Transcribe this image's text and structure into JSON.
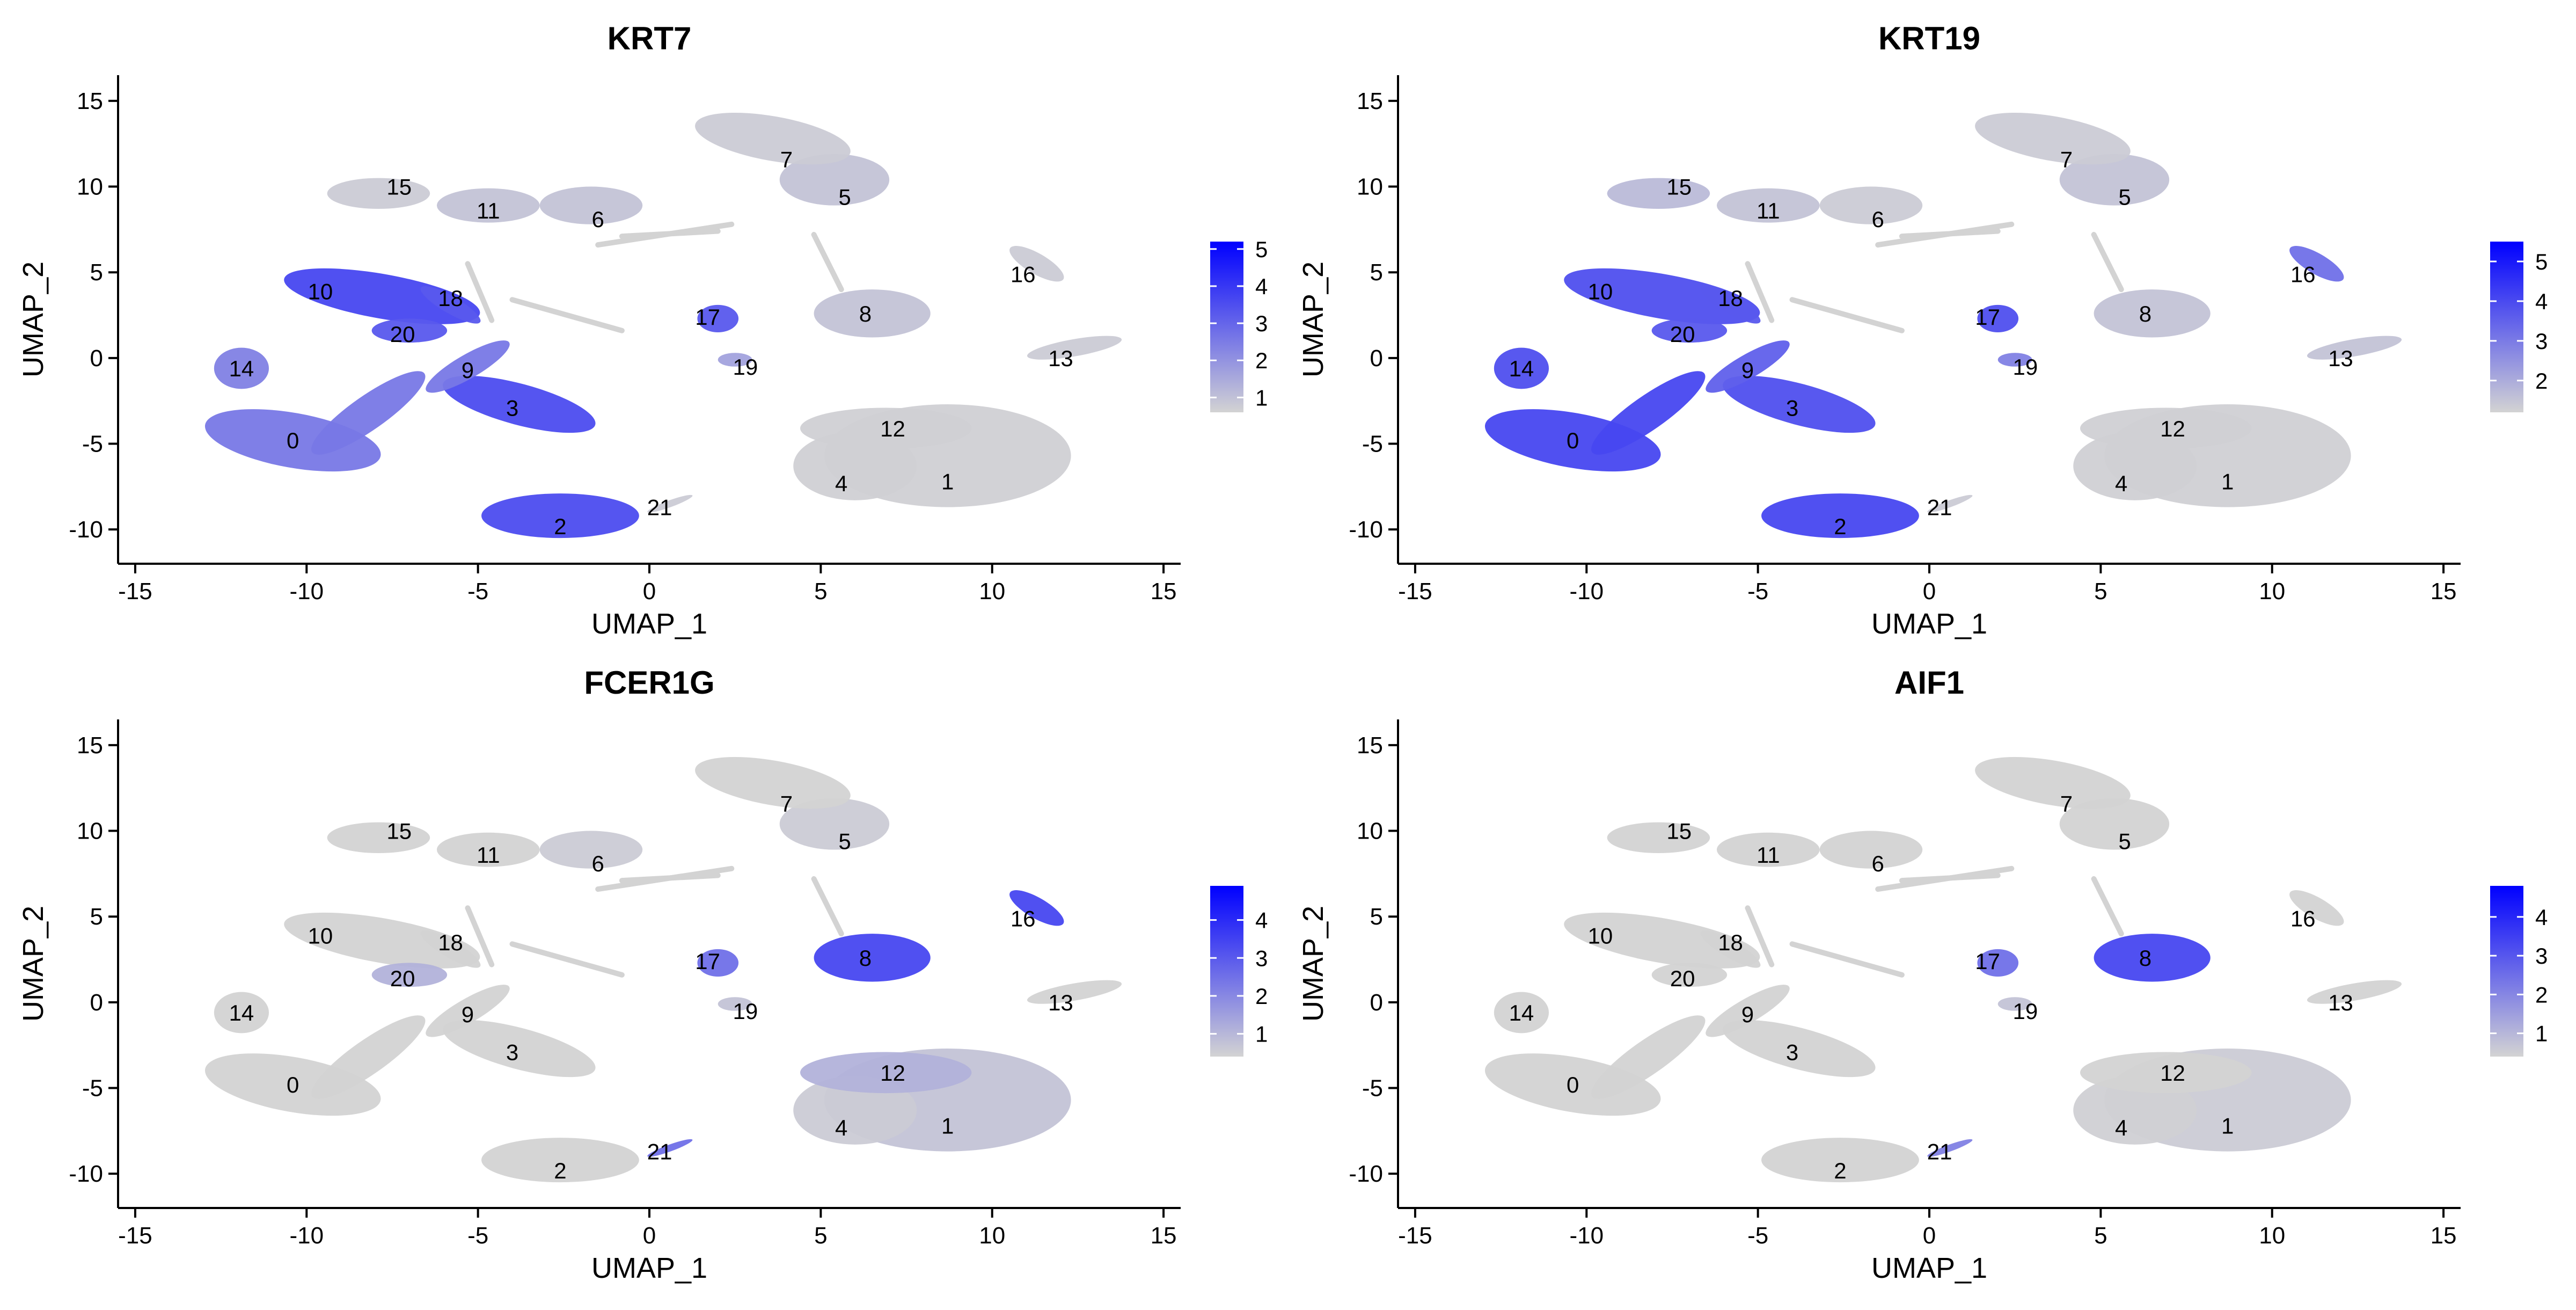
{
  "chart_data": [
    {
      "type": "scatter",
      "title": "KRT7",
      "xlabel": "UMAP_1",
      "ylabel": "UMAP_2",
      "xlim": [
        -15.5,
        15.5
      ],
      "ylim": [
        -12,
        16.5
      ],
      "xticks": [
        -15,
        -10,
        -5,
        0,
        5,
        10,
        15
      ],
      "yticks": [
        15,
        10,
        5,
        0,
        -5,
        -10
      ],
      "xtick_labels": [
        "-15",
        "-10",
        "-5",
        "0",
        "5",
        "10",
        "15"
      ],
      "ytick_labels": [
        "15",
        "10",
        "5",
        "0",
        "-5",
        "-10"
      ],
      "color_low": "#d3d3d3",
      "color_high": "#0000ff",
      "legend": {
        "position": "right",
        "min": 0.6,
        "max": 5.2,
        "ticks": [
          5,
          4,
          3,
          2,
          1
        ],
        "tick_labels": [
          "5",
          "4",
          "3",
          "2",
          "1"
        ]
      },
      "grid": false,
      "clusters": [
        {
          "label": "0",
          "x": -10.4,
          "y": -4.8,
          "level": 0.55
        },
        {
          "label": "1",
          "x": 8.7,
          "y": -7.2,
          "level": 0.02
        },
        {
          "label": "2",
          "x": -2.6,
          "y": -9.8,
          "level": 0.82
        },
        {
          "label": "3",
          "x": -4.0,
          "y": -2.9,
          "level": 0.82
        },
        {
          "label": "4",
          "x": 5.6,
          "y": -7.3,
          "level": 0.02
        },
        {
          "label": "5",
          "x": 5.7,
          "y": 9.4,
          "level": 0.1
        },
        {
          "label": "6",
          "x": -1.5,
          "y": 8.1,
          "level": 0.1
        },
        {
          "label": "7",
          "x": 4.0,
          "y": 11.6,
          "level": 0.05
        },
        {
          "label": "8",
          "x": 6.3,
          "y": 2.6,
          "level": 0.1
        },
        {
          "label": "9",
          "x": -5.3,
          "y": -0.7,
          "level": 0.55
        },
        {
          "label": "10",
          "x": -9.6,
          "y": 3.9,
          "level": 0.85
        },
        {
          "label": "11",
          "x": -4.7,
          "y": 8.6,
          "level": 0.1
        },
        {
          "label": "12",
          "x": 7.1,
          "y": -4.1,
          "level": 0.02
        },
        {
          "label": "13",
          "x": 12.0,
          "y": 0.0,
          "level": 0.05
        },
        {
          "label": "14",
          "x": -11.9,
          "y": -0.6,
          "level": 0.5
        },
        {
          "label": "15",
          "x": -7.3,
          "y": 10.0,
          "level": 0.05
        },
        {
          "label": "16",
          "x": 10.9,
          "y": 4.9,
          "level": 0.05
        },
        {
          "label": "17",
          "x": 1.7,
          "y": 2.4,
          "level": 0.75
        },
        {
          "label": "18",
          "x": -5.8,
          "y": 3.5,
          "level": 0.75
        },
        {
          "label": "19",
          "x": 2.8,
          "y": -0.5,
          "level": 0.3
        },
        {
          "label": "20",
          "x": -7.2,
          "y": 1.4,
          "level": 0.75
        },
        {
          "label": "21",
          "x": 0.3,
          "y": -8.7,
          "level": 0.05
        }
      ]
    },
    {
      "type": "scatter",
      "title": "KRT19",
      "xlabel": "UMAP_1",
      "ylabel": "UMAP_2",
      "xlim": [
        -15.5,
        15.5
      ],
      "ylim": [
        -12,
        16.5
      ],
      "xticks": [
        -15,
        -10,
        -5,
        0,
        5,
        10,
        15
      ],
      "yticks": [
        15,
        10,
        5,
        0,
        -5,
        -10
      ],
      "xtick_labels": [
        "-15",
        "-10",
        "-5",
        "0",
        "5",
        "10",
        "15"
      ],
      "ytick_labels": [
        "15",
        "10",
        "5",
        "0",
        "-5",
        "-10"
      ],
      "color_low": "#d3d3d3",
      "color_high": "#0000ff",
      "legend": {
        "position": "right",
        "min": 1.2,
        "max": 5.5,
        "ticks": [
          5,
          4,
          3,
          2
        ],
        "tick_labels": [
          "5",
          "4",
          "3",
          "2"
        ]
      },
      "grid": false,
      "clusters": [
        {
          "label": "0",
          "x": -10.4,
          "y": -4.8,
          "level": 0.85
        },
        {
          "label": "1",
          "x": 8.7,
          "y": -7.2,
          "level": 0.02
        },
        {
          "label": "2",
          "x": -2.6,
          "y": -9.8,
          "level": 0.85
        },
        {
          "label": "3",
          "x": -4.0,
          "y": -2.9,
          "level": 0.8
        },
        {
          "label": "4",
          "x": 5.6,
          "y": -7.3,
          "level": 0.02
        },
        {
          "label": "5",
          "x": 5.7,
          "y": 9.4,
          "level": 0.1
        },
        {
          "label": "6",
          "x": -1.5,
          "y": 8.1,
          "level": 0.05
        },
        {
          "label": "7",
          "x": 4.0,
          "y": 11.6,
          "level": 0.05
        },
        {
          "label": "8",
          "x": 6.3,
          "y": 2.6,
          "level": 0.1
        },
        {
          "label": "9",
          "x": -5.3,
          "y": -0.7,
          "level": 0.7
        },
        {
          "label": "10",
          "x": -9.6,
          "y": 3.9,
          "level": 0.8
        },
        {
          "label": "11",
          "x": -4.7,
          "y": 8.6,
          "level": 0.1
        },
        {
          "label": "12",
          "x": 7.1,
          "y": -4.1,
          "level": 0.02
        },
        {
          "label": "13",
          "x": 12.0,
          "y": 0.0,
          "level": 0.1
        },
        {
          "label": "14",
          "x": -11.9,
          "y": -0.6,
          "level": 0.8
        },
        {
          "label": "15",
          "x": -7.3,
          "y": 10.0,
          "level": 0.15
        },
        {
          "label": "16",
          "x": 10.9,
          "y": 4.9,
          "level": 0.6
        },
        {
          "label": "17",
          "x": 1.7,
          "y": 2.4,
          "level": 0.8
        },
        {
          "label": "18",
          "x": -5.8,
          "y": 3.5,
          "level": 0.75
        },
        {
          "label": "19",
          "x": 2.8,
          "y": -0.5,
          "level": 0.5
        },
        {
          "label": "20",
          "x": -7.2,
          "y": 1.4,
          "level": 0.75
        },
        {
          "label": "21",
          "x": 0.3,
          "y": -8.7,
          "level": 0.05
        }
      ]
    },
    {
      "type": "scatter",
      "title": "FCER1G",
      "xlabel": "UMAP_1",
      "ylabel": "UMAP_2",
      "xlim": [
        -15.5,
        15.5
      ],
      "ylim": [
        -12,
        16.5
      ],
      "xticks": [
        -15,
        -10,
        -5,
        0,
        5,
        10,
        15
      ],
      "yticks": [
        15,
        10,
        5,
        0,
        -5,
        -10
      ],
      "xtick_labels": [
        "-15",
        "-10",
        "-5",
        "0",
        "5",
        "10",
        "15"
      ],
      "ytick_labels": [
        "15",
        "10",
        "5",
        "0",
        "-5",
        "-10"
      ],
      "color_low": "#d3d3d3",
      "color_high": "#0000ff",
      "legend": {
        "position": "right",
        "min": 0.4,
        "max": 4.9,
        "ticks": [
          4,
          3,
          2,
          1
        ],
        "tick_labels": [
          "4",
          "3",
          "2",
          "1"
        ]
      },
      "grid": false,
      "clusters": [
        {
          "label": "0",
          "x": -10.4,
          "y": -4.8,
          "level": 0.0
        },
        {
          "label": "1",
          "x": 8.7,
          "y": -7.2,
          "level": 0.1
        },
        {
          "label": "2",
          "x": -2.6,
          "y": -9.8,
          "level": 0.0
        },
        {
          "label": "3",
          "x": -4.0,
          "y": -2.9,
          "level": 0.0
        },
        {
          "label": "4",
          "x": 5.6,
          "y": -7.3,
          "level": 0.05
        },
        {
          "label": "5",
          "x": 5.7,
          "y": 9.4,
          "level": 0.05
        },
        {
          "label": "6",
          "x": -1.5,
          "y": 8.1,
          "level": 0.05
        },
        {
          "label": "7",
          "x": 4.0,
          "y": 11.6,
          "level": 0.0
        },
        {
          "label": "8",
          "x": 6.3,
          "y": 2.6,
          "level": 0.85
        },
        {
          "label": "9",
          "x": -5.3,
          "y": -0.7,
          "level": 0.0
        },
        {
          "label": "10",
          "x": -9.6,
          "y": 3.9,
          "level": 0.0
        },
        {
          "label": "11",
          "x": -4.7,
          "y": 8.6,
          "level": 0.0
        },
        {
          "label": "12",
          "x": 7.1,
          "y": -4.1,
          "level": 0.2
        },
        {
          "label": "13",
          "x": 12.0,
          "y": 0.0,
          "level": 0.0
        },
        {
          "label": "14",
          "x": -11.9,
          "y": -0.6,
          "level": 0.0
        },
        {
          "label": "15",
          "x": -7.3,
          "y": 10.0,
          "level": 0.0
        },
        {
          "label": "16",
          "x": 10.9,
          "y": 4.9,
          "level": 0.85
        },
        {
          "label": "17",
          "x": 1.7,
          "y": 2.4,
          "level": 0.6
        },
        {
          "label": "18",
          "x": -5.8,
          "y": 3.5,
          "level": 0.0
        },
        {
          "label": "19",
          "x": 2.8,
          "y": -0.5,
          "level": 0.1
        },
        {
          "label": "20",
          "x": -7.2,
          "y": 1.4,
          "level": 0.2
        },
        {
          "label": "21",
          "x": 0.3,
          "y": -8.7,
          "level": 0.6
        }
      ]
    },
    {
      "type": "scatter",
      "title": "AIF1",
      "xlabel": "UMAP_1",
      "ylabel": "UMAP_2",
      "xlim": [
        -15.5,
        15.5
      ],
      "ylim": [
        -12,
        16.5
      ],
      "xticks": [
        -15,
        -10,
        -5,
        0,
        5,
        10,
        15
      ],
      "yticks": [
        15,
        10,
        5,
        0,
        -5,
        -10
      ],
      "xtick_labels": [
        "-15",
        "-10",
        "-5",
        "0",
        "5",
        "10",
        "15"
      ],
      "ytick_labels": [
        "15",
        "10",
        "5",
        "0",
        "-5",
        "-10"
      ],
      "color_low": "#d3d3d3",
      "color_high": "#0000ff",
      "legend": {
        "position": "right",
        "min": 0.4,
        "max": 4.8,
        "ticks": [
          4,
          3,
          2,
          1
        ],
        "tick_labels": [
          "4",
          "3",
          "2",
          "1"
        ]
      },
      "grid": false,
      "clusters": [
        {
          "label": "0",
          "x": -10.4,
          "y": -4.8,
          "level": 0.0
        },
        {
          "label": "1",
          "x": 8.7,
          "y": -7.2,
          "level": 0.05
        },
        {
          "label": "2",
          "x": -2.6,
          "y": -9.8,
          "level": 0.0
        },
        {
          "label": "3",
          "x": -4.0,
          "y": -2.9,
          "level": 0.0
        },
        {
          "label": "4",
          "x": 5.6,
          "y": -7.3,
          "level": 0.02
        },
        {
          "label": "5",
          "x": 5.7,
          "y": 9.4,
          "level": 0.0
        },
        {
          "label": "6",
          "x": -1.5,
          "y": 8.1,
          "level": 0.0
        },
        {
          "label": "7",
          "x": 4.0,
          "y": 11.6,
          "level": 0.0
        },
        {
          "label": "8",
          "x": 6.3,
          "y": 2.6,
          "level": 0.85
        },
        {
          "label": "9",
          "x": -5.3,
          "y": -0.7,
          "level": 0.0
        },
        {
          "label": "10",
          "x": -9.6,
          "y": 3.9,
          "level": 0.0
        },
        {
          "label": "11",
          "x": -4.7,
          "y": 8.6,
          "level": 0.0
        },
        {
          "label": "12",
          "x": 7.1,
          "y": -4.1,
          "level": 0.0
        },
        {
          "label": "13",
          "x": 12.0,
          "y": 0.0,
          "level": 0.0
        },
        {
          "label": "14",
          "x": -11.9,
          "y": -0.6,
          "level": 0.0
        },
        {
          "label": "15",
          "x": -7.3,
          "y": 10.0,
          "level": 0.0
        },
        {
          "label": "16",
          "x": 10.9,
          "y": 4.9,
          "level": 0.0
        },
        {
          "label": "17",
          "x": 1.7,
          "y": 2.4,
          "level": 0.6
        },
        {
          "label": "18",
          "x": -5.8,
          "y": 3.5,
          "level": 0.0
        },
        {
          "label": "19",
          "x": 2.8,
          "y": -0.5,
          "level": 0.1
        },
        {
          "label": "20",
          "x": -7.2,
          "y": 1.4,
          "level": 0.0
        },
        {
          "label": "21",
          "x": 0.3,
          "y": -8.7,
          "level": 0.5
        }
      ]
    }
  ]
}
